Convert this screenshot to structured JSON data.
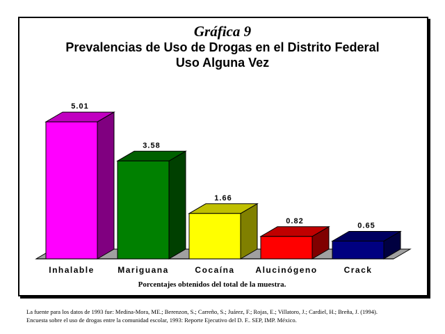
{
  "chart_data": {
    "type": "bar",
    "label": "Gráfica 9",
    "title": "Prevalencias de Uso de Drogas en el Distrito Federal",
    "subtitle": "Uso Alguna Vez",
    "xlabel": "Porcentajes obtenidos del total de la muestra.",
    "ylabel": "",
    "ylim": [
      0,
      5.5
    ],
    "grid": false,
    "legend": "none",
    "style": "3d",
    "categories": [
      "Inhalable",
      "Mariguana",
      "Cocaína",
      "Alucinógeno",
      "Crack"
    ],
    "values": [
      5.01,
      3.58,
      1.66,
      0.82,
      0.65
    ],
    "data_labels": [
      "5.01",
      "3.58",
      "1.66",
      "0.82",
      "0.65"
    ],
    "colors": [
      "#ff00ff",
      "#008000",
      "#ffff00",
      "#ff0000",
      "#000080"
    ],
    "side_colors": [
      "#800080",
      "#004000",
      "#808000",
      "#800000",
      "#000040"
    ],
    "top_colors": [
      "#c000c0",
      "#006000",
      "#c0c000",
      "#c00000",
      "#000060"
    ]
  },
  "source": {
    "line1": "La fuente para los datos de 1993 fue: Medina-Mora, ME.; Berenzon, S.; Carreño, S.; Juárez, F.; Rojas, E.; Villatoro, J.; Cardiel, H.; Breña, J. (1994).",
    "line2": "Encuesta sobre el uso de drogas entre la comunidad escolar, 1993: Reporte Ejecutivo del D. F.. SEP, IMP. México."
  }
}
